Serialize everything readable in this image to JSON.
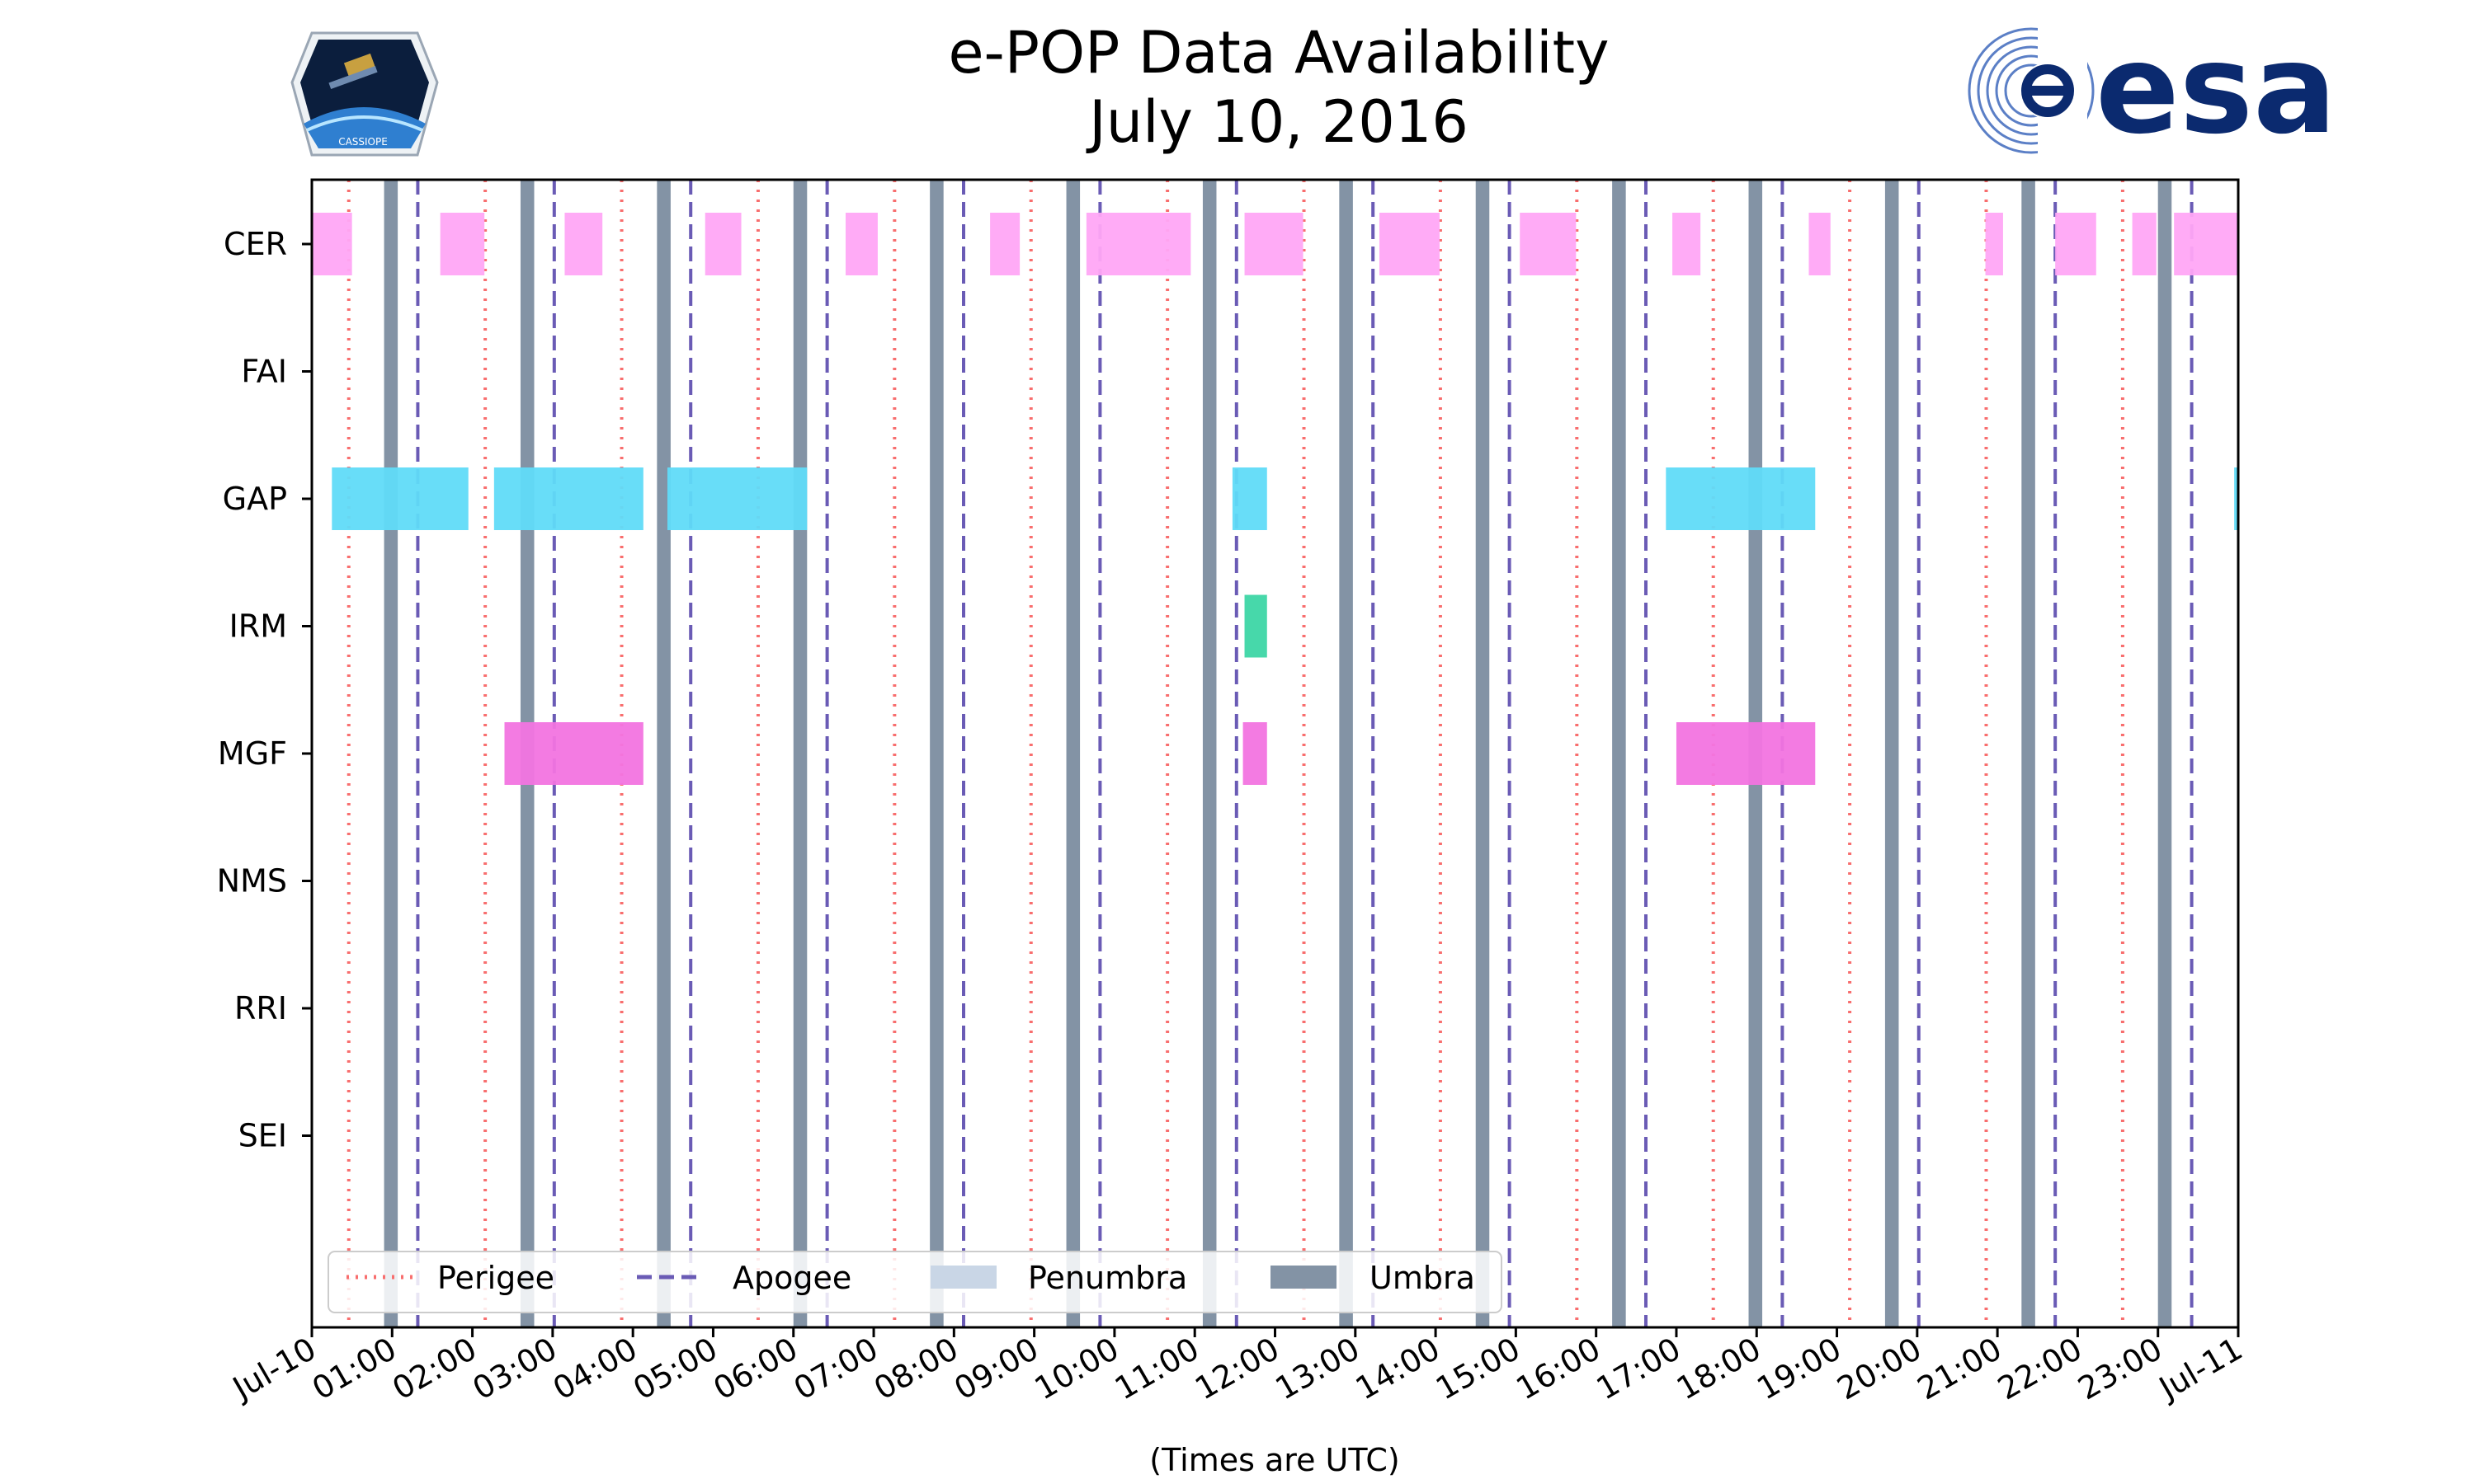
{
  "chart_data": {
    "type": "timeline",
    "title_line1": "e-POP Data Availability",
    "title_line2": "July 10, 2016",
    "xlabel": "(Times are UTC)",
    "xlim_hours": [
      0,
      24
    ],
    "x_tick_labels": [
      "Jul-10",
      "01:00",
      "02:00",
      "03:00",
      "04:00",
      "05:00",
      "06:00",
      "07:00",
      "08:00",
      "09:00",
      "10:00",
      "11:00",
      "12:00",
      "13:00",
      "14:00",
      "15:00",
      "16:00",
      "17:00",
      "18:00",
      "19:00",
      "20:00",
      "21:00",
      "22:00",
      "23:00",
      "Jul-11"
    ],
    "instruments": [
      "CER",
      "FAI",
      "GAP",
      "IRM",
      "MGF",
      "NMS",
      "RRI",
      "SEI"
    ],
    "colors": {
      "CER": "#ffa6f5",
      "GAP": "#60dbf8",
      "IRM": "#3dd6a5",
      "MGF": "#f274e0",
      "perigee": "#f86e6e",
      "apogee": "#6a5bb5",
      "penumbra": "#c9d6e6",
      "umbra": "#8393a5"
    },
    "perigee_hours": [
      0.46,
      2.16,
      3.86,
      5.56,
      7.26,
      8.96,
      10.66,
      12.36,
      14.06,
      15.76,
      17.46,
      19.16,
      20.86,
      22.56
    ],
    "apogee_hours": [
      1.32,
      3.02,
      4.72,
      6.42,
      8.12,
      9.82,
      11.52,
      13.22,
      14.92,
      16.62,
      18.32,
      20.02,
      21.72,
      23.42
    ],
    "umbra_intervals": [
      [
        0.9,
        1.07
      ],
      [
        2.6,
        2.77
      ],
      [
        4.3,
        4.47
      ],
      [
        6.0,
        6.17
      ],
      [
        7.7,
        7.87
      ],
      [
        9.4,
        9.57
      ],
      [
        11.1,
        11.27
      ],
      [
        12.8,
        12.97
      ],
      [
        14.5,
        14.67
      ],
      [
        16.2,
        16.37
      ],
      [
        17.9,
        18.07
      ],
      [
        19.6,
        19.77
      ],
      [
        21.3,
        21.47
      ],
      [
        23.0,
        23.17
      ]
    ],
    "data_intervals": {
      "CER": [
        [
          0.0,
          0.5
        ],
        [
          1.6,
          2.15
        ],
        [
          3.15,
          3.62
        ],
        [
          4.9,
          5.35
        ],
        [
          6.65,
          7.05
        ],
        [
          8.45,
          8.82
        ],
        [
          9.65,
          10.95
        ],
        [
          11.62,
          12.35
        ],
        [
          13.3,
          14.05
        ],
        [
          15.05,
          15.75
        ],
        [
          16.95,
          17.3
        ],
        [
          18.65,
          18.92
        ],
        [
          20.85,
          21.07
        ],
        [
          21.72,
          22.23
        ],
        [
          22.68,
          22.98
        ],
        [
          23.2,
          24.0
        ]
      ],
      "FAI": [],
      "GAP": [
        [
          0.25,
          1.95
        ],
        [
          2.27,
          4.13
        ],
        [
          4.43,
          6.17
        ],
        [
          11.47,
          11.9
        ],
        [
          16.87,
          18.73
        ],
        [
          23.95,
          24.0
        ]
      ],
      "IRM": [
        [
          11.62,
          11.9
        ]
      ],
      "MGF": [
        [
          2.4,
          4.13
        ],
        [
          11.6,
          11.9
        ],
        [
          17.0,
          18.73
        ]
      ],
      "NMS": [],
      "RRI": [],
      "SEI": []
    },
    "legend": {
      "position": "bottom-left",
      "entries": [
        "Perigee",
        "Apogee",
        "Penumbra",
        "Umbra"
      ]
    }
  },
  "logos": {
    "esa_text": "esa",
    "mission_badge_text": "CASSIOPE"
  }
}
